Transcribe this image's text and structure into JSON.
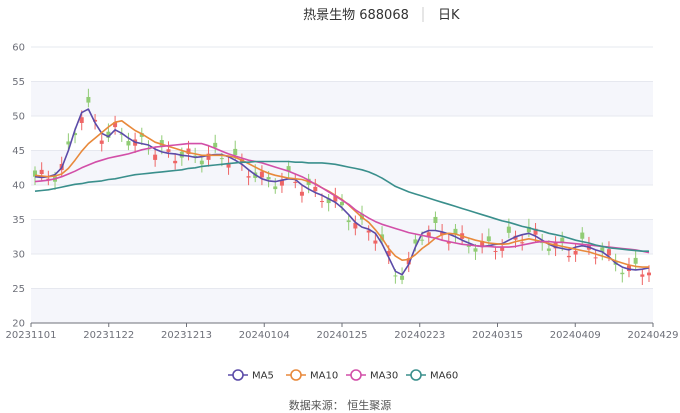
{
  "header": {
    "stock": "热景生物 688068",
    "period": "日K"
  },
  "source": "数据来源： 恒生聚源",
  "chart_data": {
    "type": "candlestick",
    "title": "热景生物 688068",
    "period": "日K",
    "ylim": [
      20,
      60
    ],
    "yticks": [
      20,
      25,
      30,
      35,
      40,
      45,
      50,
      55,
      60
    ],
    "xticks": [
      "20231101",
      "20231122",
      "20231213",
      "20240104",
      "20240125",
      "20240223",
      "20240315",
      "20240409",
      "20240429"
    ],
    "grid": true,
    "legend_position": "bottom",
    "up_color": "#ee6666",
    "down_color": "#91cc75",
    "series": [
      {
        "name": "MA5",
        "color": "#5b4ba8",
        "values": [
          41.2,
          41.1,
          41.2,
          41.5,
          42.5,
          45.0,
          48.0,
          50.5,
          51.0,
          49.0,
          47.5,
          47.0,
          48.0,
          47.5,
          46.8,
          46.2,
          46.0,
          45.8,
          45.2,
          44.8,
          44.6,
          44.5,
          44.3,
          44.2,
          44.0,
          44.1,
          44.3,
          44.4,
          44.4,
          44.1,
          43.6,
          43.0,
          42.2,
          41.5,
          40.9,
          40.6,
          40.5,
          40.7,
          40.9,
          40.8,
          40.0,
          39.4,
          38.9,
          38.5,
          38.0,
          37.5,
          36.7,
          35.7,
          34.6,
          33.9,
          33.6,
          33.0,
          31.5,
          29.5,
          27.5,
          27.0,
          28.5,
          31.0,
          33.0,
          33.4,
          33.4,
          33.2,
          32.9,
          32.5,
          32.0,
          31.6,
          31.2,
          31.1,
          31.2,
          31.4,
          31.5,
          32.0,
          32.5,
          32.8,
          33.0,
          32.6,
          32.0,
          31.4,
          31.0,
          30.8,
          30.6,
          31.0,
          31.2,
          31.0,
          30.6,
          30.3,
          29.6,
          28.7,
          28.1,
          27.8,
          27.7,
          27.8,
          28.0
        ]
      },
      {
        "name": "MA10",
        "color": "#e8893b",
        "values": [
          41.4,
          41.3,
          41.2,
          41.3,
          41.6,
          42.4,
          43.6,
          44.9,
          46.0,
          46.8,
          47.6,
          48.4,
          49.1,
          49.3,
          48.6,
          47.9,
          47.4,
          46.8,
          46.2,
          45.9,
          45.6,
          45.3,
          45.0,
          44.7,
          44.5,
          44.3,
          44.3,
          44.3,
          44.3,
          44.2,
          44.0,
          43.6,
          43.1,
          42.6,
          42.1,
          41.7,
          41.4,
          41.2,
          41.0,
          40.9,
          40.8,
          40.5,
          40.2,
          39.6,
          39.1,
          38.5,
          37.9,
          37.1,
          36.2,
          35.3,
          34.6,
          33.5,
          32.3,
          30.8,
          29.7,
          29.1,
          29.2,
          29.9,
          30.8,
          31.5,
          32.3,
          32.8,
          33.0,
          32.9,
          32.6,
          32.3,
          32.0,
          31.8,
          31.6,
          31.5,
          31.4,
          31.5,
          31.8,
          32.0,
          32.2,
          32.0,
          31.8,
          31.5,
          31.3,
          31.1,
          30.9,
          30.7,
          30.5,
          30.3,
          30.0,
          29.7,
          29.4,
          29.0,
          28.7,
          28.4,
          28.2,
          28.1,
          28.1
        ]
      },
      {
        "name": "MA30",
        "color": "#d24fa8",
        "values": [
          40.5,
          40.6,
          40.7,
          40.9,
          41.2,
          41.6,
          42.0,
          42.5,
          42.9,
          43.3,
          43.6,
          43.9,
          44.1,
          44.3,
          44.5,
          44.8,
          45.1,
          45.3,
          45.5,
          45.6,
          45.7,
          45.8,
          45.9,
          46.0,
          46.0,
          46.0,
          45.7,
          45.3,
          44.9,
          44.5,
          44.2,
          43.9,
          43.6,
          43.4,
          43.2,
          42.9,
          42.6,
          42.3,
          42.0,
          41.6,
          41.2,
          40.7,
          40.1,
          39.6,
          39.0,
          38.4,
          37.8,
          37.2,
          36.4,
          35.8,
          35.2,
          34.7,
          34.3,
          34.0,
          33.7,
          33.4,
          33.1,
          32.9,
          32.7,
          32.5,
          32.3,
          32.0,
          31.8,
          31.6,
          31.4,
          31.3,
          31.2,
          31.1,
          31.1,
          31.0,
          31.0,
          31.0,
          31.1,
          31.3,
          31.5,
          31.7,
          31.8,
          31.8,
          31.7,
          31.7,
          31.6,
          31.5,
          31.4,
          31.3,
          31.2,
          31.1,
          31.0,
          30.9,
          30.8,
          30.7,
          30.6,
          30.4,
          30.2
        ]
      },
      {
        "name": "MA60",
        "color": "#3a8f8c",
        "values": [
          39.1,
          39.2,
          39.3,
          39.5,
          39.7,
          39.9,
          40.1,
          40.2,
          40.4,
          40.5,
          40.6,
          40.8,
          40.9,
          41.1,
          41.3,
          41.5,
          41.6,
          41.7,
          41.8,
          41.9,
          42.0,
          42.1,
          42.2,
          42.4,
          42.5,
          42.7,
          42.8,
          42.9,
          43.0,
          43.1,
          43.2,
          43.3,
          43.3,
          43.4,
          43.4,
          43.4,
          43.4,
          43.4,
          43.4,
          43.3,
          43.3,
          43.2,
          43.2,
          43.2,
          43.1,
          43.0,
          42.8,
          42.6,
          42.4,
          42.2,
          41.9,
          41.5,
          41.0,
          40.4,
          39.8,
          39.4,
          39.0,
          38.7,
          38.4,
          38.1,
          37.8,
          37.5,
          37.2,
          36.9,
          36.6,
          36.3,
          36.0,
          35.7,
          35.4,
          35.1,
          34.8,
          34.6,
          34.3,
          34.0,
          33.8,
          33.5,
          33.3,
          33.0,
          32.8,
          32.6,
          32.3,
          32.0,
          31.8,
          31.6,
          31.3,
          31.1,
          30.9,
          30.8,
          30.7,
          30.6,
          30.5,
          30.4,
          30.4
        ]
      }
    ]
  }
}
